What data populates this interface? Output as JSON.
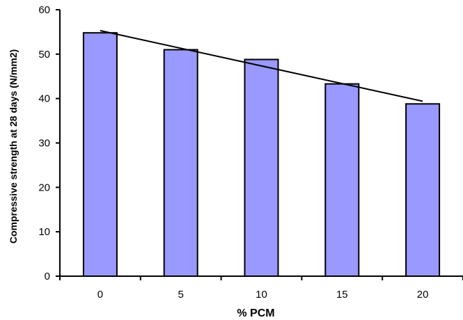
{
  "chart_data": {
    "type": "bar",
    "title": "",
    "xlabel": "% PCM",
    "ylabel": "Compressive strength at 28 days (N/mm2)",
    "categories": [
      "0",
      "5",
      "10",
      "15",
      "20"
    ],
    "values": [
      54.8,
      51.0,
      48.8,
      43.3,
      38.8
    ],
    "ylim": [
      0,
      60
    ],
    "yticks": [
      "0",
      "10",
      "20",
      "30",
      "40",
      "50",
      "60"
    ],
    "grid": false,
    "legend": "none",
    "trendline": {
      "type": "linear",
      "start": 55.3,
      "end": 39.4
    },
    "colors": {
      "bar_fill": "#9999ff",
      "bar_stroke": "#000000",
      "axis": "#000000",
      "trendline": "#000000"
    }
  }
}
